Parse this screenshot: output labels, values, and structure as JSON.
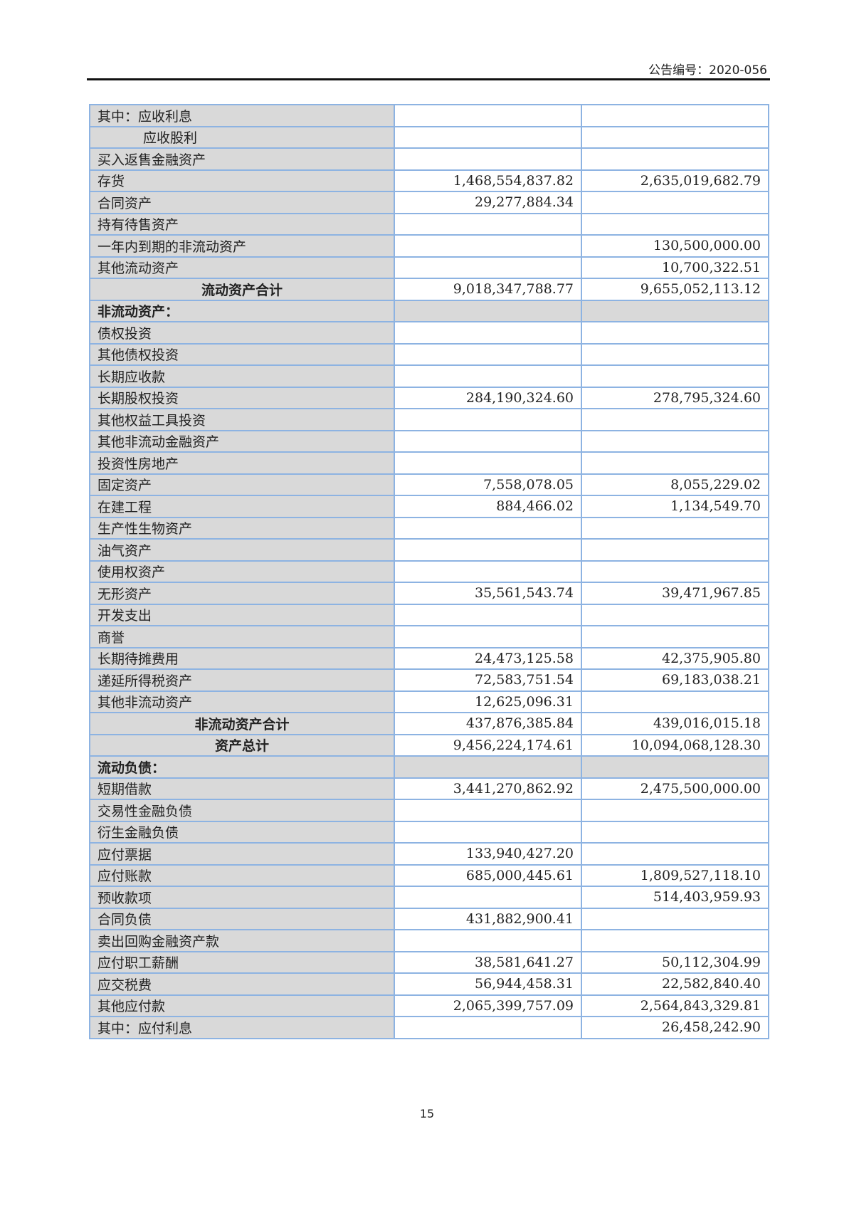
{
  "header": {
    "announcement_no": "公告编号：2020-056"
  },
  "rows": [
    {
      "label": "其中：应收利息",
      "c1": "",
      "c2": ""
    },
    {
      "label": "应收股利",
      "c1": "",
      "c2": "",
      "indent": true
    },
    {
      "label": "买入返售金融资产",
      "c1": "",
      "c2": ""
    },
    {
      "label": "存货",
      "c1": "1,468,554,837.82",
      "c2": "2,635,019,682.79"
    },
    {
      "label": "合同资产",
      "c1": "29,277,884.34",
      "c2": ""
    },
    {
      "label": "持有待售资产",
      "c1": "",
      "c2": ""
    },
    {
      "label": "一年内到期的非流动资产",
      "c1": "",
      "c2": "130,500,000.00"
    },
    {
      "label": "其他流动资产",
      "c1": "",
      "c2": "10,700,322.51"
    },
    {
      "label": "流动资产合计",
      "c1": "9,018,347,788.77",
      "c2": "9,655,052,113.12",
      "type": "total"
    },
    {
      "label": "非流动资产：",
      "c1": "",
      "c2": "",
      "type": "section"
    },
    {
      "label": "债权投资",
      "c1": "",
      "c2": ""
    },
    {
      "label": "其他债权投资",
      "c1": "",
      "c2": ""
    },
    {
      "label": "长期应收款",
      "c1": "",
      "c2": ""
    },
    {
      "label": "长期股权投资",
      "c1": "284,190,324.60",
      "c2": "278,795,324.60"
    },
    {
      "label": "其他权益工具投资",
      "c1": "",
      "c2": ""
    },
    {
      "label": "其他非流动金融资产",
      "c1": "",
      "c2": ""
    },
    {
      "label": "投资性房地产",
      "c1": "",
      "c2": ""
    },
    {
      "label": "固定资产",
      "c1": "7,558,078.05",
      "c2": "8,055,229.02"
    },
    {
      "label": "在建工程",
      "c1": "884,466.02",
      "c2": "1,134,549.70"
    },
    {
      "label": "生产性生物资产",
      "c1": "",
      "c2": ""
    },
    {
      "label": "油气资产",
      "c1": "",
      "c2": ""
    },
    {
      "label": "使用权资产",
      "c1": "",
      "c2": ""
    },
    {
      "label": "无形资产",
      "c1": "35,561,543.74",
      "c2": "39,471,967.85"
    },
    {
      "label": "开发支出",
      "c1": "",
      "c2": ""
    },
    {
      "label": "商誉",
      "c1": "",
      "c2": ""
    },
    {
      "label": "长期待摊费用",
      "c1": "24,473,125.58",
      "c2": "42,375,905.80"
    },
    {
      "label": "递延所得税资产",
      "c1": "72,583,751.54",
      "c2": "69,183,038.21"
    },
    {
      "label": "其他非流动资产",
      "c1": "12,625,096.31",
      "c2": ""
    },
    {
      "label": "非流动资产合计",
      "c1": "437,876,385.84",
      "c2": "439,016,015.18",
      "type": "total"
    },
    {
      "label": "资产总计",
      "c1": "9,456,224,174.61",
      "c2": "10,094,068,128.30",
      "type": "total"
    },
    {
      "label": "流动负债：",
      "c1": "",
      "c2": "",
      "type": "section"
    },
    {
      "label": "短期借款",
      "c1": "3,441,270,862.92",
      "c2": "2,475,500,000.00"
    },
    {
      "label": "交易性金融负债",
      "c1": "",
      "c2": ""
    },
    {
      "label": "衍生金融负债",
      "c1": "",
      "c2": ""
    },
    {
      "label": "应付票据",
      "c1": "133,940,427.20",
      "c2": ""
    },
    {
      "label": "应付账款",
      "c1": "685,000,445.61",
      "c2": "1,809,527,118.10"
    },
    {
      "label": "预收款项",
      "c1": "",
      "c2": "514,403,959.93"
    },
    {
      "label": "合同负债",
      "c1": "431,882,900.41",
      "c2": ""
    },
    {
      "label": "卖出回购金融资产款",
      "c1": "",
      "c2": ""
    },
    {
      "label": "应付职工薪酬",
      "c1": "38,581,641.27",
      "c2": "50,112,304.99"
    },
    {
      "label": "应交税费",
      "c1": "56,944,458.31",
      "c2": "22,582,840.40"
    },
    {
      "label": "其他应付款",
      "c1": "2,065,399,757.09",
      "c2": "2,564,843,329.81"
    },
    {
      "label": "其中：应付利息",
      "c1": "",
      "c2": "26,458,242.90"
    }
  ],
  "footer": {
    "page_number": "15"
  }
}
